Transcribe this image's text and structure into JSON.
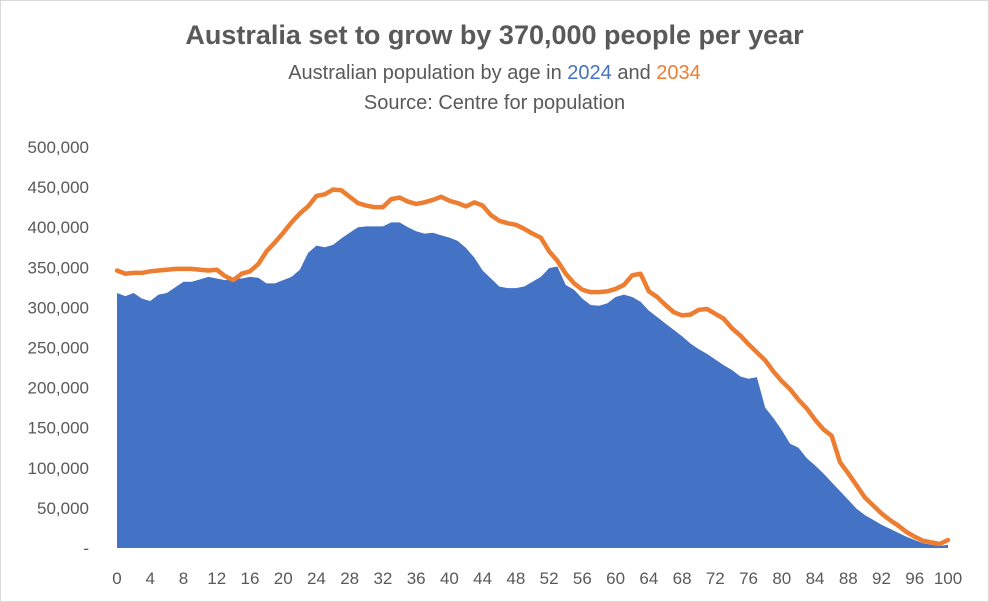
{
  "chart_data": {
    "type": "area",
    "title": "Australia set to grow by 370,000 people per year",
    "subtitle_prefix": "Australian population by age in ",
    "subtitle_year_a": "2024",
    "subtitle_mid": " and ",
    "subtitle_year_b": "2034",
    "source": "Source: Centre for population",
    "xlabel": "",
    "ylabel": "",
    "xlim": [
      0,
      100
    ],
    "ylim": [
      0,
      500000
    ],
    "y_tick_labels": [
      "-",
      "50,000",
      "100,000",
      "150,000",
      "200,000",
      "250,000",
      "300,000",
      "350,000",
      "400,000",
      "450,000",
      "500,000"
    ],
    "x_tick_labels": [
      "0",
      "4",
      "8",
      "12",
      "16",
      "20",
      "24",
      "28",
      "32",
      "36",
      "40",
      "44",
      "48",
      "52",
      "56",
      "60",
      "64",
      "68",
      "72",
      "76",
      "80",
      "84",
      "88",
      "92",
      "96",
      "100"
    ],
    "grid": false,
    "legend": "none",
    "x": [
      0,
      1,
      2,
      3,
      4,
      5,
      6,
      7,
      8,
      9,
      10,
      11,
      12,
      13,
      14,
      15,
      16,
      17,
      18,
      19,
      20,
      21,
      22,
      23,
      24,
      25,
      26,
      27,
      28,
      29,
      30,
      31,
      32,
      33,
      34,
      35,
      36,
      37,
      38,
      39,
      40,
      41,
      42,
      43,
      44,
      45,
      46,
      47,
      48,
      49,
      50,
      51,
      52,
      53,
      54,
      55,
      56,
      57,
      58,
      59,
      60,
      61,
      62,
      63,
      64,
      65,
      66,
      67,
      68,
      69,
      70,
      71,
      72,
      73,
      74,
      75,
      76,
      77,
      78,
      79,
      80,
      81,
      82,
      83,
      84,
      85,
      86,
      87,
      88,
      89,
      90,
      91,
      92,
      93,
      94,
      95,
      96,
      97,
      98,
      99,
      100
    ],
    "series": [
      {
        "name": "2024",
        "style": "area",
        "color": "#4472c4",
        "values": [
          318000,
          314000,
          318000,
          311000,
          308000,
          316000,
          318000,
          325000,
          332000,
          332000,
          335000,
          338000,
          336000,
          334000,
          336000,
          336000,
          338000,
          337000,
          330000,
          330000,
          334000,
          338000,
          347000,
          368000,
          377000,
          375000,
          378000,
          386000,
          393000,
          400000,
          401000,
          401000,
          401000,
          406000,
          406000,
          400000,
          395000,
          392000,
          393000,
          390000,
          387000,
          383000,
          374000,
          362000,
          346000,
          336000,
          326000,
          324000,
          324000,
          326000,
          332000,
          338000,
          349000,
          351000,
          328000,
          322000,
          311000,
          303000,
          302000,
          305000,
          313000,
          316000,
          313000,
          307000,
          296000,
          288000,
          280000,
          272000,
          264000,
          255000,
          248000,
          242000,
          235000,
          228000,
          222000,
          214000,
          211000,
          213000,
          175000,
          162000,
          147000,
          130000,
          125000,
          112000,
          103000,
          93000,
          82000,
          71000,
          60000,
          49000,
          41000,
          35000,
          29000,
          24000,
          19000,
          14000,
          10000,
          6000,
          4000,
          2500,
          4000
        ]
      },
      {
        "name": "2034",
        "style": "line",
        "color": "#ed7d31",
        "values": [
          346000,
          342000,
          343000,
          343000,
          345000,
          346000,
          347000,
          348000,
          348000,
          348000,
          347000,
          346000,
          347000,
          339000,
          334000,
          342000,
          345000,
          354000,
          370000,
          381000,
          393000,
          406000,
          417000,
          426000,
          439000,
          441000,
          447000,
          446000,
          438000,
          430000,
          427000,
          425000,
          425000,
          435000,
          437000,
          432000,
          429000,
          431000,
          434000,
          438000,
          433000,
          430000,
          426000,
          431000,
          427000,
          415000,
          408000,
          405000,
          403000,
          398000,
          392000,
          387000,
          370000,
          358000,
          342000,
          330000,
          322000,
          319000,
          319000,
          320000,
          323000,
          328000,
          340000,
          342000,
          320000,
          313000,
          303000,
          294000,
          290000,
          291000,
          297000,
          298000,
          292000,
          286000,
          274000,
          265000,
          254000,
          244000,
          234000,
          220000,
          208000,
          198000,
          185000,
          174000,
          160000,
          148000,
          140000,
          107000,
          93000,
          78000,
          63000,
          53000,
          43000,
          35000,
          28000,
          20000,
          14000,
          9000,
          7000,
          5000,
          10000
        ]
      }
    ]
  }
}
